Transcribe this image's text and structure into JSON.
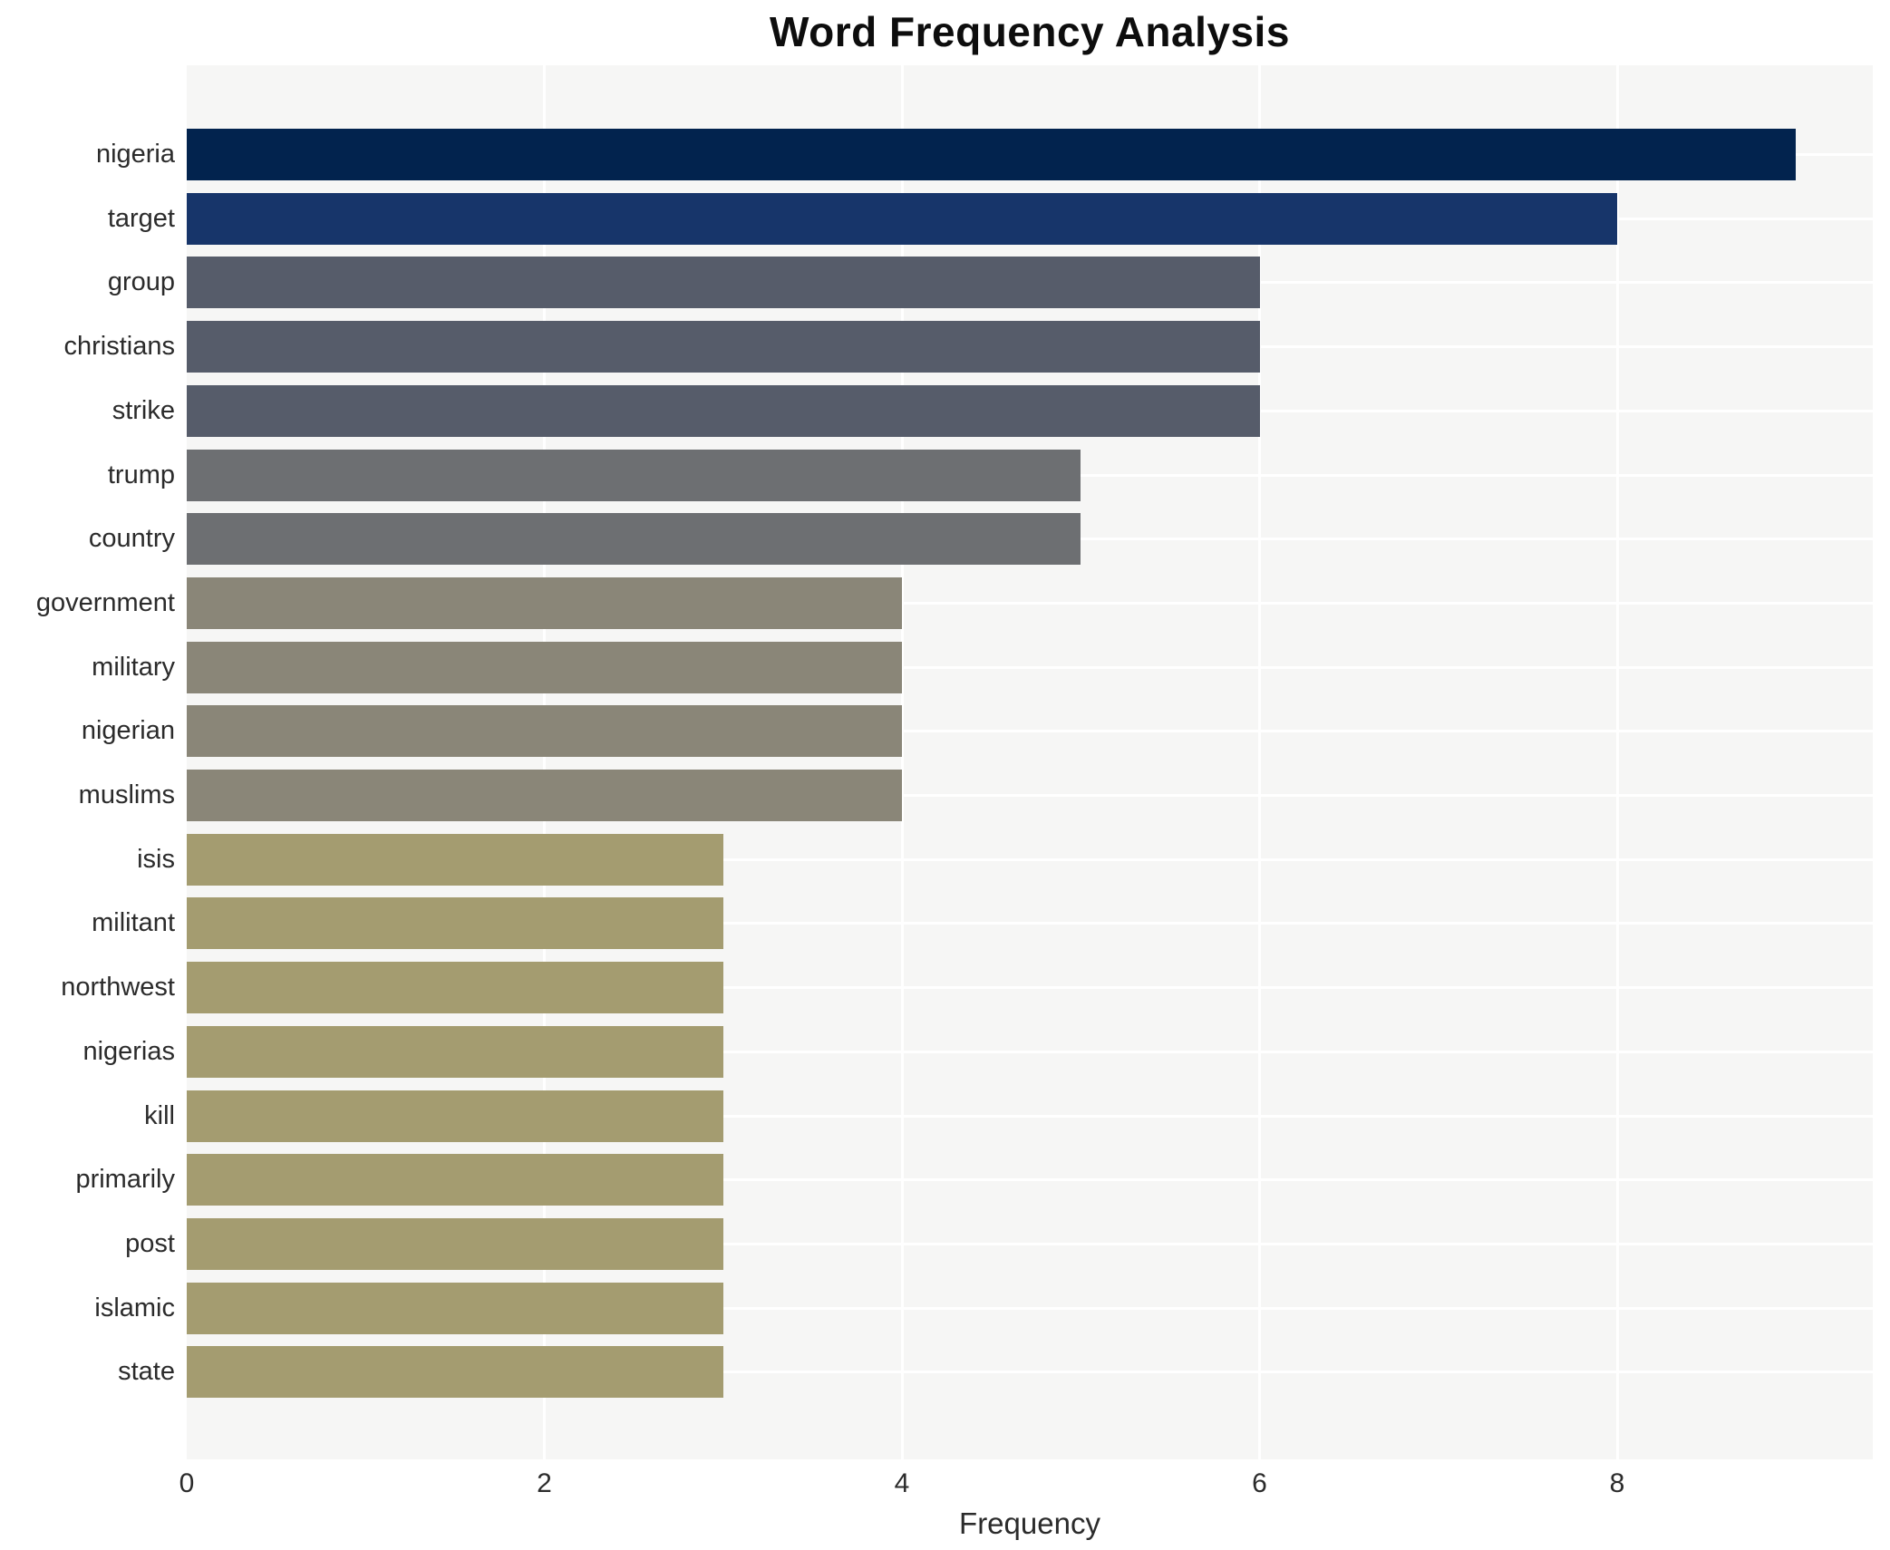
{
  "page": {
    "background_color": "#ffffff"
  },
  "chart_data": {
    "type": "bar",
    "orientation": "horizontal",
    "title": "Word Frequency Analysis",
    "xlabel": "Frequency",
    "ylabel": "",
    "categories": [
      "nigeria",
      "target",
      "group",
      "christians",
      "strike",
      "trump",
      "country",
      "government",
      "military",
      "nigerian",
      "muslims",
      "isis",
      "militant",
      "northwest",
      "nigerias",
      "kill",
      "primarily",
      "post",
      "islamic",
      "state"
    ],
    "values": [
      9,
      8,
      6,
      6,
      6,
      5,
      5,
      4,
      4,
      4,
      4,
      3,
      3,
      3,
      3,
      3,
      3,
      3,
      3,
      3
    ],
    "bar_colors": [
      "#02234e",
      "#17356a",
      "#565c6a",
      "#565c6a",
      "#565c6a",
      "#6d6f72",
      "#6d6f72",
      "#8a8678",
      "#8a8678",
      "#8a8678",
      "#8a8678",
      "#a49c70",
      "#a49c70",
      "#a49c70",
      "#a49c70",
      "#a49c70",
      "#a49c70",
      "#a49c70",
      "#a49c70",
      "#a49c70"
    ],
    "xticks": [
      0,
      2,
      4,
      6,
      8
    ],
    "xlim": [
      0,
      9.43
    ],
    "grid": "on",
    "gridline_color": "#ffffff",
    "plot_background": "#f6f6f5",
    "legend": "none"
  }
}
